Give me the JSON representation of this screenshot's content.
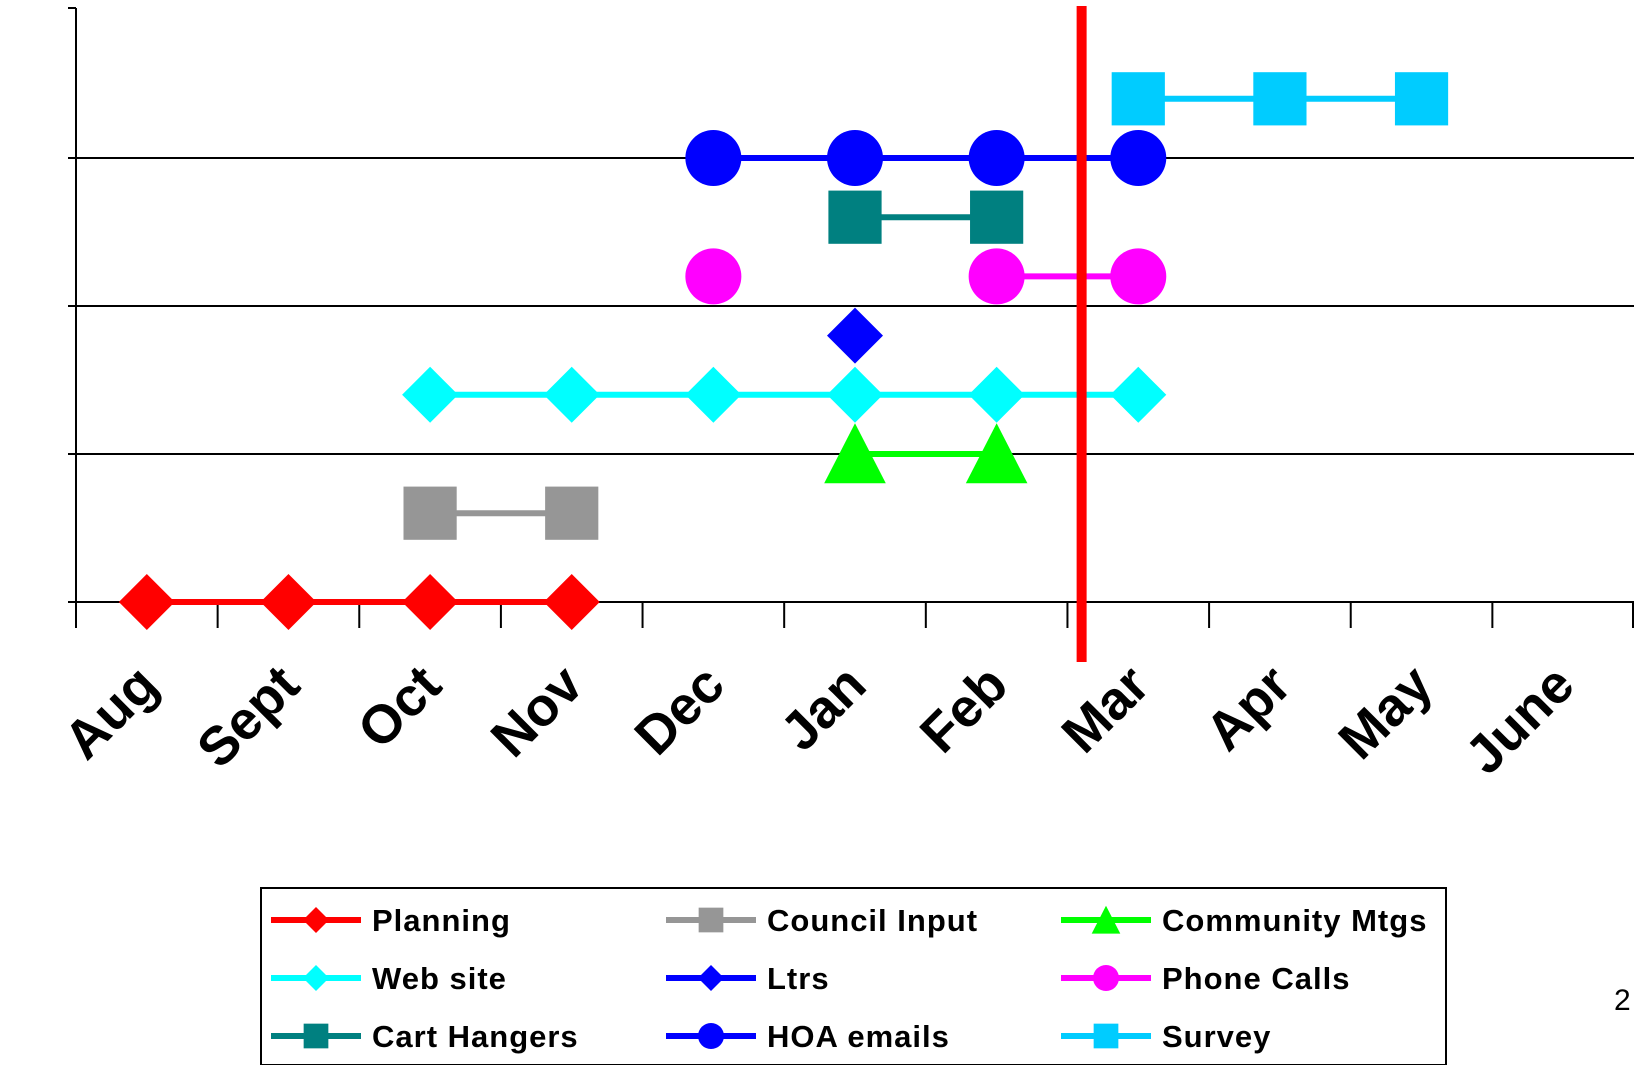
{
  "chart_data": {
    "type": "line",
    "categories": [
      "Aug",
      "Sept",
      "Oct",
      "Nov",
      "Dec",
      "Jan",
      "Feb",
      "Mar",
      "Apr",
      "May",
      "June"
    ],
    "ylim": [
      0,
      3
    ],
    "grid": true,
    "legend_position": "bottom",
    "current_marker": {
      "month_index": 7.1,
      "color": "#ff0000"
    },
    "series": [
      {
        "name": "Planning",
        "color": "#ff0000",
        "marker": "diamond",
        "x": [
          0.5,
          1.5,
          2.5,
          3.5
        ],
        "y": [
          0,
          0,
          0,
          0
        ]
      },
      {
        "name": "Council Input",
        "color": "#969696",
        "marker": "square",
        "x": [
          2.5,
          3.5
        ],
        "y": [
          0.6,
          0.6
        ]
      },
      {
        "name": "Community Mtgs",
        "color": "#00ff00",
        "marker": "triangle",
        "x": [
          5.5,
          6.5
        ],
        "y": [
          1.0,
          1.0
        ]
      },
      {
        "name": "Web site",
        "color": "#00ffff",
        "marker": "diamond",
        "x": [
          2.5,
          3.5,
          4.5,
          5.5,
          6.5,
          7.5
        ],
        "y": [
          1.4,
          1.4,
          1.4,
          1.4,
          1.4,
          1.4
        ]
      },
      {
        "name": "Ltrs",
        "color": "#0000ff",
        "marker": "diamond",
        "x": [
          5.5
        ],
        "y": [
          1.8
        ]
      },
      {
        "name": "Phone Calls",
        "color": "#ff00ff",
        "marker": "circle",
        "x": [
          4.5,
          6.5,
          7.5
        ],
        "y": [
          2.2,
          2.2,
          2.2
        ],
        "segments": [
          [
            1,
            2
          ]
        ]
      },
      {
        "name": "Cart Hangers",
        "color": "#008080",
        "marker": "square",
        "x": [
          5.5,
          6.5
        ],
        "y": [
          2.6,
          2.6
        ]
      },
      {
        "name": "HOA emails",
        "color": "#0000ff",
        "marker": "circle",
        "x": [
          4.5,
          5.5,
          6.5,
          7.5
        ],
        "y": [
          3.0,
          3.0,
          3.0,
          3.0
        ]
      },
      {
        "name": "Survey",
        "color": "#00ccff",
        "marker": "square",
        "x": [
          7.5,
          8.5,
          9.5
        ],
        "y": [
          3.4,
          3.4,
          3.4
        ]
      }
    ]
  },
  "page_number": "2"
}
